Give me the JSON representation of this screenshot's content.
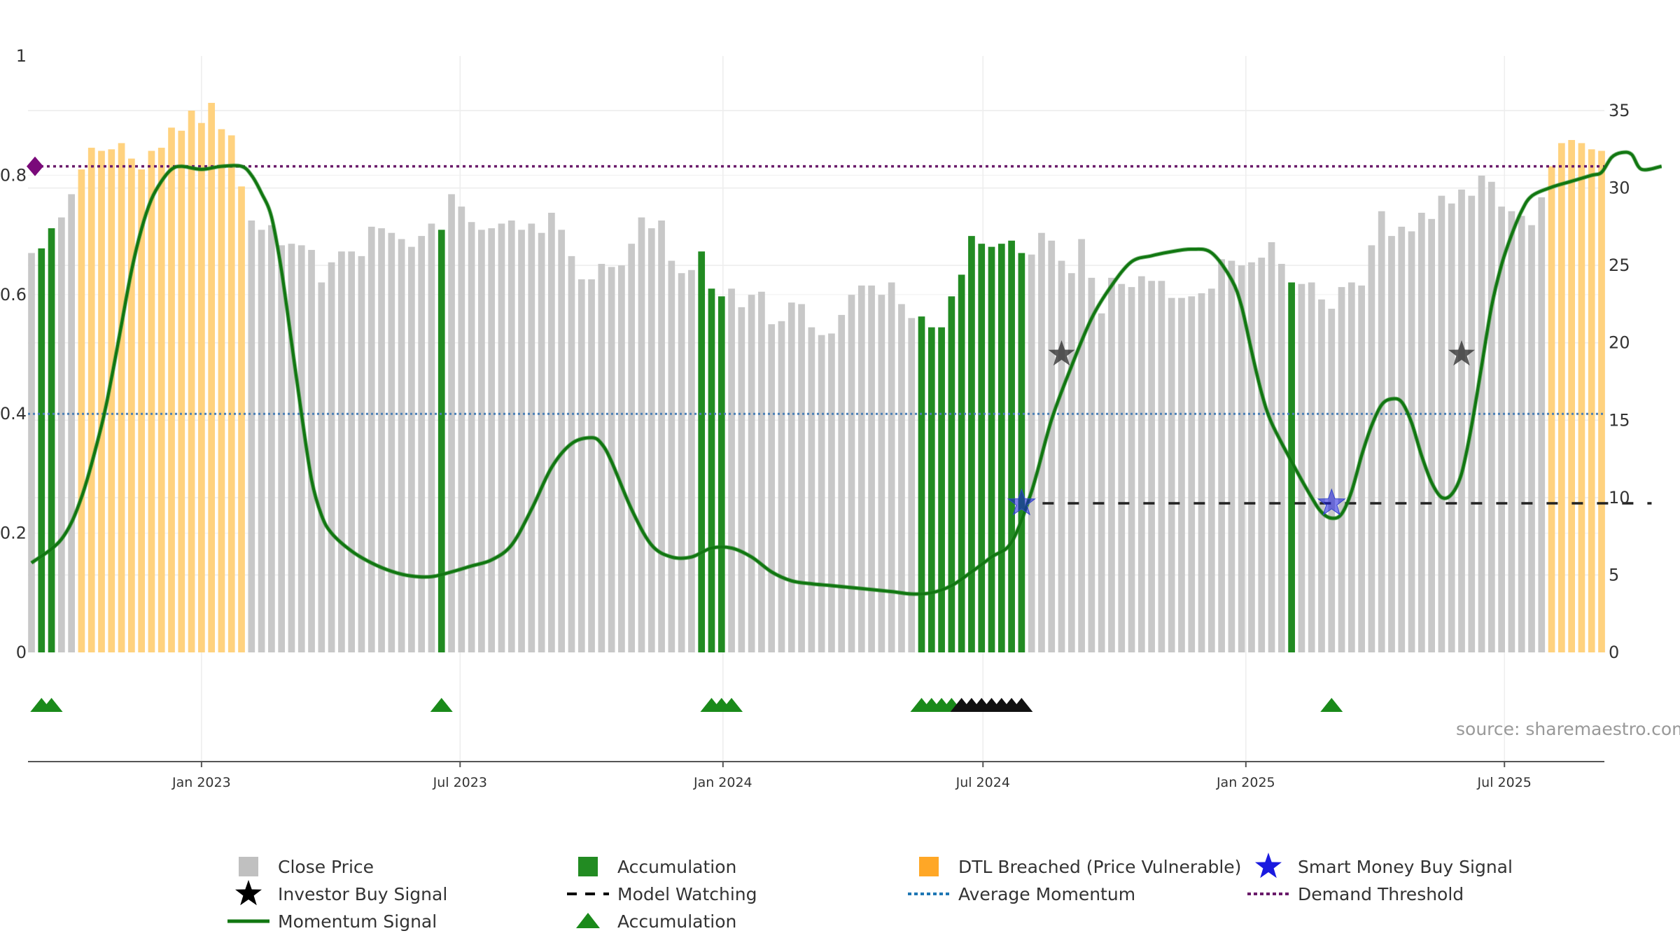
{
  "chart_data": {
    "type": "bar",
    "title": "",
    "source": "source: sharemaestro.com",
    "left_axis": {
      "range": [
        0,
        1
      ],
      "ticks": [
        "0",
        "0.2",
        "0.4",
        "0.6",
        "0.8",
        "1"
      ],
      "tick_values": [
        0,
        0.2,
        0.4,
        0.6,
        0.8,
        1
      ]
    },
    "right_axis": {
      "range": [
        0,
        35
      ],
      "ticks": [
        "0",
        "5",
        "10",
        "15",
        "20",
        "25",
        "30",
        "35"
      ],
      "tick_values": [
        0,
        5,
        10,
        15,
        20,
        25,
        30,
        35
      ]
    },
    "x_axis": {
      "start": "2022-09-04",
      "end": "2025-10-26",
      "ticks": [
        {
          "date": "2023-01-01",
          "label": "Jan 2023"
        },
        {
          "date": "2023-07-01",
          "label": "Jul 2023"
        },
        {
          "date": "2024-01-01",
          "label": "Jan 2024"
        },
        {
          "date": "2024-07-01",
          "label": "Jul 2024"
        },
        {
          "date": "2025-01-01",
          "label": "Jan 2025"
        },
        {
          "date": "2025-07-01",
          "label": "Jul 2025"
        }
      ]
    },
    "colors": {
      "close": "#c8c8c8",
      "accumulation": "#228b22",
      "dtl": "#ffd27f",
      "momentum": "#117711",
      "average": "#4a7fb5",
      "demand": "#6a1b6a",
      "smart_money": "#1a1adf",
      "investor": "#333333"
    },
    "bar_series": {
      "name": "Close Price",
      "start": "2022-09-04",
      "interval_days": 7,
      "values": [
        25.8,
        26.1,
        27.4,
        28.1,
        29.6,
        31.2,
        32.6,
        32.4,
        32.5,
        32.9,
        31.9,
        31.2,
        32.4,
        32.6,
        33.9,
        33.7,
        35.0,
        34.2,
        35.5,
        33.8,
        33.4,
        30.1,
        27.9,
        27.3,
        27.6,
        26.3,
        26.4,
        26.3,
        26.0,
        23.9,
        25.2,
        25.9,
        25.9,
        25.6,
        27.5,
        27.4,
        27.1,
        26.7,
        26.2,
        26.9,
        27.7,
        27.3,
        29.6,
        28.8,
        27.8,
        27.3,
        27.4,
        27.7,
        27.9,
        27.3,
        27.7,
        27.1,
        28.4,
        27.3,
        25.6,
        24.1,
        24.1,
        25.1,
        24.9,
        25.0,
        26.4,
        28.1,
        27.4,
        27.9,
        25.3,
        24.5,
        24.7,
        25.9,
        23.5,
        23.0,
        23.5,
        22.3,
        23.1,
        23.3,
        21.2,
        21.4,
        22.6,
        22.5,
        21.0,
        20.5,
        20.6,
        21.8,
        23.1,
        23.7,
        23.7,
        23.1,
        23.9,
        22.5,
        21.6,
        21.7,
        21.0,
        21.0,
        23.0,
        24.4,
        26.9,
        26.4,
        26.2,
        26.4,
        26.6,
        25.8,
        25.7,
        27.1,
        26.6,
        25.3,
        24.5,
        26.7,
        24.2,
        21.9,
        24.2,
        23.8,
        23.6,
        24.3,
        24.0,
        24.0,
        22.9,
        22.9,
        23.0,
        23.2,
        23.5,
        25.4,
        25.3,
        25.0,
        25.2,
        25.5,
        26.5,
        25.1,
        23.9,
        23.8,
        23.9,
        22.8,
        22.2,
        23.6,
        23.9,
        23.7,
        26.3,
        28.5,
        26.9,
        27.5,
        27.2,
        28.4,
        28.0,
        29.5,
        29.0,
        29.9,
        29.5,
        30.8,
        30.4,
        28.8,
        28.5,
        28.2,
        27.6,
        29.4,
        31.4,
        32.9,
        33.1,
        32.9,
        32.5,
        32.4
      ],
      "accumulation_indices": [
        1,
        2,
        41,
        67,
        68,
        69,
        89,
        90,
        91,
        92,
        93,
        94,
        95,
        96,
        97,
        98,
        99,
        126
      ],
      "dtl_indices": [
        5,
        6,
        7,
        8,
        9,
        10,
        11,
        12,
        13,
        14,
        15,
        16,
        17,
        18,
        19,
        20,
        21,
        152,
        153,
        154,
        155,
        156,
        157
      ]
    },
    "momentum_series": {
      "name": "Momentum Signal",
      "unit_axis": "left",
      "points": [
        [
          0,
          0.15
        ],
        [
          3,
          0.19
        ],
        [
          5,
          0.26
        ],
        [
          7,
          0.38
        ],
        [
          8,
          0.46
        ],
        [
          9,
          0.55
        ],
        [
          10,
          0.64
        ],
        [
          11,
          0.71
        ],
        [
          12,
          0.76
        ],
        [
          13,
          0.79
        ],
        [
          14,
          0.81
        ],
        [
          15,
          0.815
        ],
        [
          17,
          0.81
        ],
        [
          19,
          0.815
        ],
        [
          21,
          0.815
        ],
        [
          22,
          0.8
        ],
        [
          23,
          0.77
        ],
        [
          24,
          0.73
        ],
        [
          25,
          0.64
        ],
        [
          26,
          0.52
        ],
        [
          27,
          0.4
        ],
        [
          28,
          0.29
        ],
        [
          29,
          0.23
        ],
        [
          30,
          0.2
        ],
        [
          32,
          0.17
        ],
        [
          34,
          0.15
        ],
        [
          36,
          0.136
        ],
        [
          38,
          0.128
        ],
        [
          40,
          0.127
        ],
        [
          42,
          0.135
        ],
        [
          44,
          0.145
        ],
        [
          46,
          0.155
        ],
        [
          48,
          0.18
        ],
        [
          50,
          0.24
        ],
        [
          52,
          0.31
        ],
        [
          54,
          0.35
        ],
        [
          56,
          0.36
        ],
        [
          57,
          0.35
        ],
        [
          58,
          0.32
        ],
        [
          60,
          0.24
        ],
        [
          62,
          0.18
        ],
        [
          64,
          0.16
        ],
        [
          66,
          0.16
        ],
        [
          68,
          0.175
        ],
        [
          70,
          0.175
        ],
        [
          72,
          0.16
        ],
        [
          74,
          0.135
        ],
        [
          76,
          0.12
        ],
        [
          78,
          0.115
        ],
        [
          80,
          0.112
        ],
        [
          83,
          0.107
        ],
        [
          86,
          0.102
        ],
        [
          88,
          0.098
        ],
        [
          90,
          0.1
        ],
        [
          92,
          0.112
        ],
        [
          94,
          0.135
        ],
        [
          96,
          0.16
        ],
        [
          98,
          0.185
        ],
        [
          100,
          0.27
        ],
        [
          102,
          0.39
        ],
        [
          104,
          0.48
        ],
        [
          106,
          0.56
        ],
        [
          108,
          0.615
        ],
        [
          110,
          0.655
        ],
        [
          112,
          0.665
        ],
        [
          114,
          0.672
        ],
        [
          116,
          0.676
        ],
        [
          118,
          0.67
        ],
        [
          120,
          0.625
        ],
        [
          121,
          0.58
        ],
        [
          122,
          0.505
        ],
        [
          123,
          0.435
        ],
        [
          124,
          0.385
        ],
        [
          126,
          0.32
        ],
        [
          128,
          0.26
        ],
        [
          129,
          0.235
        ],
        [
          130,
          0.225
        ],
        [
          131,
          0.232
        ],
        [
          132,
          0.27
        ],
        [
          133,
          0.33
        ],
        [
          134,
          0.38
        ],
        [
          135,
          0.415
        ],
        [
          136,
          0.425
        ],
        [
          137,
          0.42
        ],
        [
          138,
          0.385
        ],
        [
          139,
          0.33
        ],
        [
          140,
          0.285
        ],
        [
          141,
          0.26
        ],
        [
          142,
          0.265
        ],
        [
          143,
          0.3
        ],
        [
          144,
          0.38
        ],
        [
          145,
          0.48
        ],
        [
          146,
          0.58
        ],
        [
          147,
          0.65
        ],
        [
          148,
          0.7
        ],
        [
          149,
          0.74
        ],
        [
          150,
          0.765
        ],
        [
          152,
          0.78
        ],
        [
          154,
          0.79
        ],
        [
          156,
          0.8
        ],
        [
          157,
          0.805
        ],
        [
          158,
          0.83
        ],
        [
          159,
          0.838
        ],
        [
          160,
          0.835
        ],
        [
          161,
          0.81
        ],
        [
          163,
          0.815
        ]
      ]
    },
    "average_momentum": {
      "name": "Average Momentum",
      "value": 0.4
    },
    "demand_threshold": {
      "name": "Demand Threshold",
      "value": 0.815
    },
    "model_watching": {
      "name": "Model Watching",
      "value": 0.25,
      "from_index": 99,
      "to_index": 162
    },
    "smart_money_signals": [
      {
        "index": 99,
        "value": 0.25
      },
      {
        "index": 130,
        "value": 0.25
      }
    ],
    "investor_signals": [
      {
        "index": 103,
        "value": 0.5
      },
      {
        "index": 143,
        "value": 0.5
      }
    ],
    "accumulation_markers": {
      "green_indices": [
        1,
        2,
        41,
        68,
        69,
        70,
        89,
        90,
        91,
        92,
        130
      ],
      "black_indices": [
        93,
        94,
        95,
        96,
        97,
        98,
        99
      ]
    },
    "legend": [
      {
        "label": "Close Price",
        "symbol": "square",
        "color": "#c0c0c0"
      },
      {
        "label": "Accumulation",
        "symbol": "square",
        "color": "#228b22"
      },
      {
        "label": "DTL Breached (Price Vulnerable)",
        "symbol": "square",
        "color": "#ffa726"
      },
      {
        "label": "Smart Money Buy Signal",
        "symbol": "star",
        "color": "#1a1adf"
      },
      {
        "label": "Investor Buy Signal",
        "symbol": "star",
        "color": "#000000"
      },
      {
        "label": "Model Watching",
        "symbol": "dash",
        "color": "#000000"
      },
      {
        "label": "Average Momentum",
        "symbol": "dot",
        "color": "#1f77b4"
      },
      {
        "label": "Demand Threshold",
        "symbol": "dot",
        "color": "#6a1b6a"
      },
      {
        "label": "Momentum Signal",
        "symbol": "line",
        "color": "#117711"
      },
      {
        "label": "Accumulation",
        "symbol": "triangle",
        "color": "#1a8a1a"
      }
    ]
  }
}
